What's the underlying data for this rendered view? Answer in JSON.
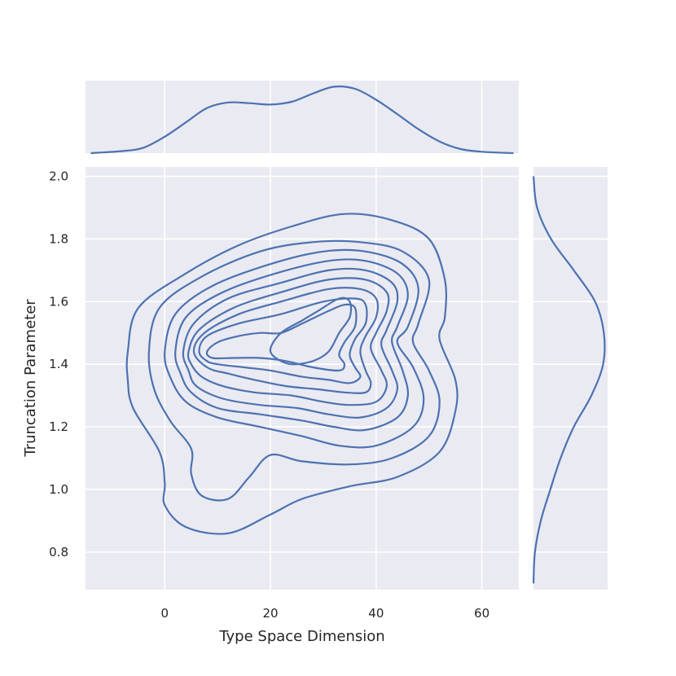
{
  "chart_data": {
    "type": "kde_joint_plot",
    "xlabel": "Type Space Dimension",
    "ylabel": "Truncation Parameter",
    "xlim": [
      -15,
      67
    ],
    "ylim": [
      0.68,
      2.03
    ],
    "x_ticks": [
      0,
      20,
      40,
      60
    ],
    "y_ticks": [
      0.8,
      1.0,
      1.2,
      1.4,
      1.6,
      1.8,
      2.0
    ],
    "grid": true,
    "line_color": "#4c72b0",
    "panel_bg": "#eaeaf2",
    "contours": [
      [
        [
          -7,
          1.44
        ],
        [
          -5,
          1.58
        ],
        [
          4,
          1.69
        ],
        [
          14,
          1.78
        ],
        [
          24,
          1.84
        ],
        [
          34,
          1.88
        ],
        [
          43,
          1.86
        ],
        [
          50,
          1.8
        ],
        [
          53,
          1.67
        ],
        [
          53,
          1.55
        ],
        [
          52,
          1.48
        ],
        [
          55,
          1.35
        ],
        [
          55,
          1.25
        ],
        [
          52,
          1.12
        ],
        [
          44,
          1.04
        ],
        [
          35,
          1.01
        ],
        [
          26,
          0.97
        ],
        [
          20,
          0.92
        ],
        [
          12,
          0.86
        ],
        [
          4,
          0.88
        ],
        [
          0,
          0.95
        ],
        [
          0,
          1.02
        ],
        [
          -1,
          1.12
        ],
        [
          -6,
          1.26
        ],
        [
          -7,
          1.35
        ]
      ],
      [
        [
          -3,
          1.44
        ],
        [
          -1,
          1.58
        ],
        [
          7,
          1.68
        ],
        [
          18,
          1.76
        ],
        [
          28,
          1.79
        ],
        [
          37,
          1.79
        ],
        [
          45,
          1.76
        ],
        [
          50,
          1.67
        ],
        [
          48,
          1.53
        ],
        [
          47,
          1.47
        ],
        [
          50,
          1.38
        ],
        [
          52,
          1.28
        ],
        [
          50,
          1.17
        ],
        [
          43,
          1.1
        ],
        [
          35,
          1.08
        ],
        [
          26,
          1.09
        ],
        [
          20,
          1.11
        ],
        [
          16,
          1.04
        ],
        [
          12,
          0.97
        ],
        [
          7,
          0.98
        ],
        [
          5,
          1.05
        ],
        [
          5,
          1.13
        ],
        [
          1,
          1.22
        ],
        [
          -2,
          1.32
        ]
      ],
      [
        [
          0,
          1.44
        ],
        [
          2,
          1.56
        ],
        [
          9,
          1.65
        ],
        [
          20,
          1.72
        ],
        [
          30,
          1.76
        ],
        [
          38,
          1.76
        ],
        [
          45,
          1.72
        ],
        [
          48,
          1.64
        ],
        [
          46,
          1.52
        ],
        [
          44,
          1.47
        ],
        [
          47,
          1.39
        ],
        [
          49,
          1.29
        ],
        [
          47,
          1.2
        ],
        [
          40,
          1.14
        ],
        [
          33,
          1.14
        ],
        [
          26,
          1.17
        ],
        [
          18,
          1.2
        ],
        [
          10,
          1.23
        ],
        [
          4,
          1.28
        ],
        [
          1,
          1.36
        ]
      ],
      [
        [
          2,
          1.44
        ],
        [
          4,
          1.55
        ],
        [
          11,
          1.63
        ],
        [
          21,
          1.69
        ],
        [
          31,
          1.73
        ],
        [
          38,
          1.73
        ],
        [
          44,
          1.69
        ],
        [
          46,
          1.62
        ],
        [
          44,
          1.52
        ],
        [
          43,
          1.47
        ],
        [
          45,
          1.38
        ],
        [
          46,
          1.3
        ],
        [
          44,
          1.23
        ],
        [
          38,
          1.19
        ],
        [
          32,
          1.2
        ],
        [
          26,
          1.22
        ],
        [
          18,
          1.24
        ],
        [
          10,
          1.26
        ],
        [
          5,
          1.31
        ],
        [
          3,
          1.37
        ]
      ],
      [
        [
          3.5,
          1.44
        ],
        [
          5.5,
          1.53
        ],
        [
          12,
          1.61
        ],
        [
          22,
          1.66
        ],
        [
          31,
          1.7
        ],
        [
          38,
          1.7
        ],
        [
          43,
          1.66
        ],
        [
          44,
          1.6
        ],
        [
          42,
          1.51
        ],
        [
          41,
          1.46
        ],
        [
          43,
          1.38
        ],
        [
          44,
          1.32
        ],
        [
          42,
          1.26
        ],
        [
          37,
          1.23
        ],
        [
          31,
          1.24
        ],
        [
          25,
          1.26
        ],
        [
          18,
          1.27
        ],
        [
          11,
          1.29
        ],
        [
          6,
          1.33
        ],
        [
          4.5,
          1.38
        ]
      ],
      [
        [
          4.5,
          1.44
        ],
        [
          6.5,
          1.51
        ],
        [
          13,
          1.58
        ],
        [
          22,
          1.63
        ],
        [
          31,
          1.67
        ],
        [
          38,
          1.67
        ],
        [
          42,
          1.63
        ],
        [
          42,
          1.57
        ],
        [
          40,
          1.5
        ],
        [
          39,
          1.45
        ],
        [
          41,
          1.38
        ],
        [
          42,
          1.33
        ],
        [
          40,
          1.28
        ],
        [
          35,
          1.27
        ],
        [
          30,
          1.28
        ],
        [
          24,
          1.3
        ],
        [
          17,
          1.31
        ],
        [
          11,
          1.33
        ],
        [
          7,
          1.36
        ],
        [
          5,
          1.4
        ]
      ],
      [
        [
          5.5,
          1.44
        ],
        [
          7.5,
          1.5
        ],
        [
          14,
          1.56
        ],
        [
          22,
          1.6
        ],
        [
          31,
          1.64
        ],
        [
          37,
          1.64
        ],
        [
          40,
          1.61
        ],
        [
          40,
          1.55
        ],
        [
          38,
          1.49
        ],
        [
          37,
          1.44
        ],
        [
          38,
          1.38
        ],
        [
          39,
          1.34
        ],
        [
          38,
          1.31
        ],
        [
          34,
          1.31
        ],
        [
          29,
          1.32
        ],
        [
          23,
          1.33
        ],
        [
          17,
          1.35
        ],
        [
          12,
          1.37
        ],
        [
          8,
          1.39
        ]
      ],
      [
        [
          6.5,
          1.44
        ],
        [
          8,
          1.49
        ],
        [
          14,
          1.53
        ],
        [
          22,
          1.56
        ],
        [
          30,
          1.6
        ],
        [
          36,
          1.61
        ],
        [
          38,
          1.59
        ],
        [
          38,
          1.53
        ],
        [
          36,
          1.48
        ],
        [
          35,
          1.43
        ],
        [
          36,
          1.39
        ],
        [
          37,
          1.36
        ],
        [
          35,
          1.34
        ],
        [
          31,
          1.35
        ],
        [
          26,
          1.36
        ],
        [
          20,
          1.38
        ],
        [
          15,
          1.39
        ],
        [
          10,
          1.4
        ],
        [
          8,
          1.41
        ]
      ],
      [
        [
          8,
          1.44
        ],
        [
          10,
          1.47
        ],
        [
          14,
          1.49
        ],
        [
          18,
          1.5
        ],
        [
          22,
          1.5
        ],
        [
          26,
          1.53
        ],
        [
          31,
          1.57
        ],
        [
          34,
          1.59
        ],
        [
          36,
          1.58
        ],
        [
          36,
          1.52
        ],
        [
          34,
          1.47
        ],
        [
          33,
          1.43
        ],
        [
          34,
          1.4
        ],
        [
          33,
          1.38
        ],
        [
          28,
          1.39
        ],
        [
          23,
          1.41
        ],
        [
          18,
          1.42
        ],
        [
          13,
          1.42
        ],
        [
          9,
          1.42
        ]
      ],
      [
        [
          20,
          1.45
        ],
        [
          22,
          1.5
        ],
        [
          26,
          1.54
        ],
        [
          29,
          1.57
        ],
        [
          33,
          1.61
        ],
        [
          35,
          1.6
        ],
        [
          35,
          1.55
        ],
        [
          33,
          1.5
        ],
        [
          31,
          1.44
        ],
        [
          28,
          1.41
        ],
        [
          24,
          1.4
        ],
        [
          21,
          1.42
        ]
      ]
    ],
    "marginal_x": {
      "x": [
        -14,
        -8,
        -4,
        0,
        4,
        8,
        12,
        16,
        20,
        24,
        28,
        32,
        36,
        40,
        44,
        48,
        52,
        56,
        60,
        66
      ],
      "density": [
        0.0,
        0.03,
        0.08,
        0.24,
        0.45,
        0.66,
        0.74,
        0.73,
        0.71,
        0.75,
        0.87,
        0.97,
        0.94,
        0.78,
        0.57,
        0.35,
        0.17,
        0.06,
        0.02,
        0.0
      ]
    },
    "marginal_y": {
      "y": [
        0.7,
        0.8,
        0.9,
        1.0,
        1.1,
        1.2,
        1.3,
        1.4,
        1.5,
        1.6,
        1.7,
        1.8,
        1.9,
        2.0
      ],
      "density": [
        0.0,
        0.02,
        0.1,
        0.23,
        0.37,
        0.55,
        0.79,
        0.95,
        0.96,
        0.84,
        0.55,
        0.24,
        0.05,
        0.0
      ]
    }
  }
}
